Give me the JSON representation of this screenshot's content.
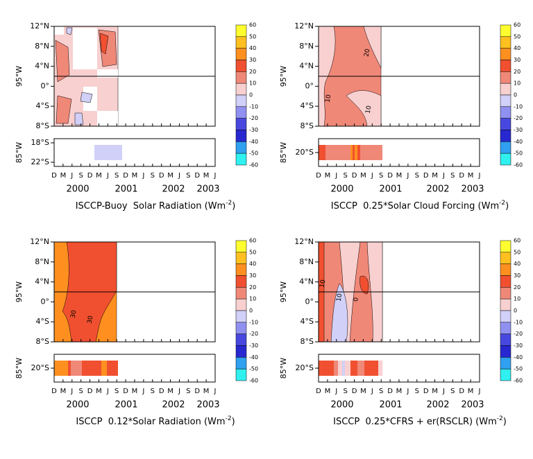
{
  "x_axis": {
    "months": [
      "D",
      "M",
      "J",
      "S",
      "D",
      "M",
      "J",
      "S",
      "D",
      "M",
      "J",
      "S",
      "D",
      "M",
      "J",
      "S",
      "D",
      "M",
      "J"
    ],
    "years": [
      "2000",
      "2001",
      "2002",
      "2003"
    ]
  },
  "map_yticks": [
    "12°N",
    "8°N",
    "4°N",
    "0°",
    "4°S",
    "8°S"
  ],
  "colorbar": {
    "levels": [
      60,
      50,
      40,
      30,
      20,
      10,
      0,
      -10,
      -20,
      -30,
      -40,
      -50,
      -60
    ],
    "colors": [
      "#ffff30",
      "#ffc020",
      "#ff9020",
      "#f05030",
      "#f08878",
      "#f8d0d0",
      "#d0d0f8",
      "#9090f0",
      "#4848e0",
      "#2828d0",
      "#30a0f0",
      "#30f0f0"
    ]
  },
  "panels": [
    {
      "title": "ISCCP-Buoy  Solar Radiation (Wm",
      "title_exponent": "-2",
      "title_close": ")",
      "map_ylabel": "95°W",
      "strip_ylabel": "85°W",
      "strip_yticks": [
        "18°S",
        "22°S"
      ],
      "contour_labels": []
    },
    {
      "title": "ISCCP  0.25*Solar Cloud Forcing (Wm",
      "title_exponent": "-2",
      "title_close": ")",
      "map_ylabel": "95°W",
      "strip_ylabel": "85°W",
      "strip_yticks": [
        "20°S"
      ],
      "contour_labels": [
        "20",
        "10",
        "10"
      ]
    },
    {
      "title": "ISCCP  0.12*Solar Radiation (Wm",
      "title_exponent": "-2",
      "title_close": ")",
      "map_ylabel": "95°W",
      "strip_ylabel": "85°W",
      "strip_yticks": [
        "20°S"
      ],
      "contour_labels": [
        "30",
        "30"
      ]
    },
    {
      "title": "ISCCP  0.25*CFRS + er(RSCLR) (Wm",
      "title_exponent": "-2",
      "title_close": ")",
      "map_ylabel": "95°W",
      "strip_ylabel": "85°W",
      "strip_yticks": [
        "20°S"
      ],
      "contour_labels": [
        "10",
        "0",
        "10"
      ]
    }
  ]
}
